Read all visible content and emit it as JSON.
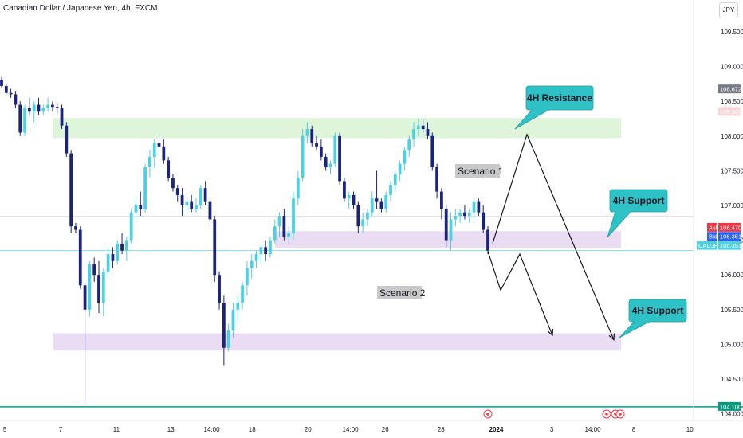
{
  "header": {
    "symbol_title": "Canadian Dollar / Japanese Yen, 4h, FXCM"
  },
  "currency_button": "JPY",
  "colors": {
    "bull": "#4dd0e1",
    "bear": "#1a237e",
    "resistance_zone": "#dff5da",
    "support_zone": "#eadcf2",
    "callout": "#2ec1c6",
    "callout_border": "#1e9ea3",
    "baseline": "#089981"
  },
  "chart_data": {
    "type": "candlestick",
    "symbol": "CADJPY",
    "timeframe": "4h",
    "source": "FXCM",
    "ylim": [
      104.0,
      109.9
    ],
    "y_ticks": [
      "109.500",
      "109.000",
      "108.500",
      "108.000",
      "107.500",
      "107.000",
      "106.500",
      "106.000",
      "105.500",
      "105.000",
      "104.500",
      "104.000"
    ],
    "x_ticks": [
      "5",
      "7",
      "11",
      "13",
      "14:00",
      "18",
      "20",
      "14:00",
      "26",
      "28",
      "2024",
      "3",
      "14:00",
      "8",
      "10"
    ],
    "price_labels": {
      "high_label": "108.672",
      "marker_label": "108.349",
      "ask_tag": "Ask",
      "ask": "106.470",
      "bid_tag": "Bid",
      "bid": "106.351",
      "symbol_tag": "CADJPY",
      "last": "106.351",
      "low_marker": "104.100"
    },
    "annotations": {
      "resistance": "4H Resistance",
      "support_upper": "4H Support",
      "support_lower": "4H Support",
      "scenario1": "Scenario 1",
      "scenario2": "Scenario 2"
    },
    "zones": [
      {
        "name": "4H Resistance",
        "from": 107.97,
        "to": 108.26
      },
      {
        "name": "4H Support",
        "from": 106.39,
        "to": 106.63
      },
      {
        "name": "4H Support",
        "from": 104.91,
        "to": 105.16
      }
    ],
    "scenario1_path": [
      106.5,
      108.0,
      105.1
    ],
    "scenario2_path": [
      106.3,
      105.8,
      106.3,
      105.1
    ],
    "candles": [
      [
        108.8,
        108.85,
        108.7,
        108.72
      ],
      [
        108.72,
        108.75,
        108.6,
        108.62
      ],
      [
        108.62,
        108.68,
        108.55,
        108.6
      ],
      [
        108.6,
        108.65,
        108.4,
        108.45
      ],
      [
        108.45,
        108.5,
        108.0,
        108.05
      ],
      [
        108.05,
        108.45,
        108.0,
        108.4
      ],
      [
        108.4,
        108.55,
        108.3,
        108.35
      ],
      [
        108.35,
        108.5,
        108.2,
        108.45
      ],
      [
        108.45,
        108.55,
        108.3,
        108.35
      ],
      [
        108.35,
        108.45,
        108.3,
        108.4
      ],
      [
        108.4,
        108.55,
        108.35,
        108.45
      ],
      [
        108.45,
        108.5,
        108.35,
        108.42
      ],
      [
        108.42,
        108.48,
        108.32,
        108.4
      ],
      [
        108.4,
        108.45,
        108.1,
        108.15
      ],
      [
        108.15,
        108.2,
        107.7,
        107.75
      ],
      [
        107.75,
        107.8,
        106.6,
        106.7
      ],
      [
        106.7,
        106.75,
        106.6,
        106.65
      ],
      [
        106.65,
        106.7,
        105.8,
        105.85
      ],
      [
        105.85,
        105.9,
        104.15,
        105.5
      ],
      [
        105.5,
        106.2,
        105.4,
        106.15
      ],
      [
        106.15,
        106.25,
        105.9,
        106.0
      ],
      [
        106.0,
        106.2,
        105.45,
        105.6
      ],
      [
        105.6,
        106.1,
        105.4,
        106.05
      ],
      [
        106.05,
        106.4,
        105.95,
        106.3
      ],
      [
        106.3,
        106.4,
        106.1,
        106.2
      ],
      [
        106.2,
        106.5,
        106.15,
        106.45
      ],
      [
        106.45,
        106.6,
        106.3,
        106.35
      ],
      [
        106.35,
        106.55,
        106.2,
        106.5
      ],
      [
        106.5,
        106.95,
        106.45,
        106.9
      ],
      [
        106.9,
        107.1,
        106.8,
        107.0
      ],
      [
        107.0,
        107.2,
        106.85,
        106.95
      ],
      [
        106.95,
        107.6,
        106.9,
        107.55
      ],
      [
        107.55,
        107.8,
        107.4,
        107.7
      ],
      [
        107.7,
        107.95,
        107.55,
        107.9
      ],
      [
        107.9,
        108.0,
        107.75,
        107.85
      ],
      [
        107.85,
        107.95,
        107.6,
        107.65
      ],
      [
        107.65,
        107.7,
        107.35,
        107.4
      ],
      [
        107.4,
        107.45,
        107.2,
        107.25
      ],
      [
        107.25,
        107.3,
        107.05,
        107.15
      ],
      [
        107.15,
        107.25,
        106.85,
        107.0
      ],
      [
        107.0,
        107.1,
        106.9,
        107.05
      ],
      [
        107.05,
        107.15,
        106.9,
        106.95
      ],
      [
        106.95,
        107.1,
        106.9,
        107.0
      ],
      [
        107.0,
        107.3,
        106.95,
        107.25
      ],
      [
        107.25,
        107.35,
        107.0,
        107.05
      ],
      [
        107.05,
        107.1,
        106.7,
        106.8
      ],
      [
        106.8,
        106.85,
        105.9,
        106.0
      ],
      [
        106.0,
        106.05,
        105.5,
        105.6
      ],
      [
        105.6,
        105.7,
        104.7,
        104.95
      ],
      [
        104.95,
        105.3,
        104.9,
        105.2
      ],
      [
        105.2,
        105.6,
        105.1,
        105.5
      ],
      [
        105.5,
        105.7,
        105.3,
        105.6
      ],
      [
        105.6,
        105.9,
        105.5,
        105.85
      ],
      [
        105.85,
        106.2,
        105.7,
        106.1
      ],
      [
        106.1,
        106.3,
        105.95,
        106.2
      ],
      [
        106.2,
        106.35,
        106.1,
        106.3
      ],
      [
        106.3,
        106.45,
        106.15,
        106.4
      ],
      [
        106.4,
        106.5,
        106.2,
        106.3
      ],
      [
        106.3,
        106.55,
        106.25,
        106.5
      ],
      [
        106.5,
        106.8,
        106.45,
        106.7
      ],
      [
        106.7,
        106.9,
        106.55,
        106.85
      ],
      [
        106.85,
        106.95,
        106.5,
        106.55
      ],
      [
        106.55,
        106.7,
        106.45,
        106.6
      ],
      [
        106.6,
        107.2,
        106.5,
        107.1
      ],
      [
        107.1,
        107.5,
        107.0,
        107.4
      ],
      [
        107.4,
        108.1,
        107.35,
        108.0
      ],
      [
        108.0,
        108.2,
        107.9,
        108.1
      ],
      [
        108.1,
        108.15,
        107.85,
        107.9
      ],
      [
        107.9,
        108.0,
        107.8,
        107.85
      ],
      [
        107.85,
        107.95,
        107.65,
        107.7
      ],
      [
        107.7,
        107.75,
        107.5,
        107.55
      ],
      [
        107.55,
        107.65,
        107.45,
        107.6
      ],
      [
        107.6,
        108.05,
        107.55,
        108.0
      ],
      [
        108.0,
        108.05,
        107.3,
        107.35
      ],
      [
        107.35,
        107.4,
        107.05,
        107.1
      ],
      [
        107.1,
        107.2,
        106.95,
        107.15
      ],
      [
        107.15,
        107.2,
        106.95,
        107.0
      ],
      [
        107.0,
        107.05,
        106.6,
        106.7
      ],
      [
        106.7,
        106.9,
        106.6,
        106.8
      ],
      [
        106.8,
        106.95,
        106.7,
        106.9
      ],
      [
        106.9,
        107.2,
        106.85,
        107.1
      ],
      [
        107.1,
        107.5,
        106.95,
        107.05
      ],
      [
        107.05,
        107.1,
        106.9,
        106.95
      ],
      [
        106.95,
        107.2,
        106.9,
        107.15
      ],
      [
        107.15,
        107.35,
        107.05,
        107.3
      ],
      [
        107.3,
        107.5,
        107.2,
        107.45
      ],
      [
        107.45,
        107.65,
        107.35,
        107.6
      ],
      [
        107.6,
        107.85,
        107.5,
        107.8
      ],
      [
        107.8,
        108.0,
        107.7,
        107.95
      ],
      [
        107.95,
        108.2,
        107.85,
        108.1
      ],
      [
        108.1,
        108.25,
        108.0,
        108.15
      ],
      [
        108.15,
        108.25,
        108.05,
        108.1
      ],
      [
        108.1,
        108.2,
        107.95,
        108.0
      ],
      [
        108.0,
        108.05,
        107.5,
        107.55
      ],
      [
        107.55,
        107.6,
        107.1,
        107.2
      ],
      [
        107.2,
        107.25,
        106.8,
        106.95
      ],
      [
        106.95,
        107.0,
        106.4,
        106.5
      ],
      [
        106.5,
        106.9,
        106.35,
        106.8
      ],
      [
        106.8,
        106.95,
        106.7,
        106.85
      ],
      [
        106.85,
        106.95,
        106.75,
        106.9
      ],
      [
        106.9,
        107.0,
        106.8,
        106.85
      ],
      [
        106.85,
        106.95,
        106.75,
        106.9
      ],
      [
        106.9,
        107.1,
        106.8,
        107.05
      ],
      [
        107.05,
        107.1,
        106.85,
        106.9
      ],
      [
        106.9,
        107.0,
        106.6,
        106.65
      ],
      [
        106.65,
        106.7,
        106.3,
        106.35
      ]
    ]
  }
}
